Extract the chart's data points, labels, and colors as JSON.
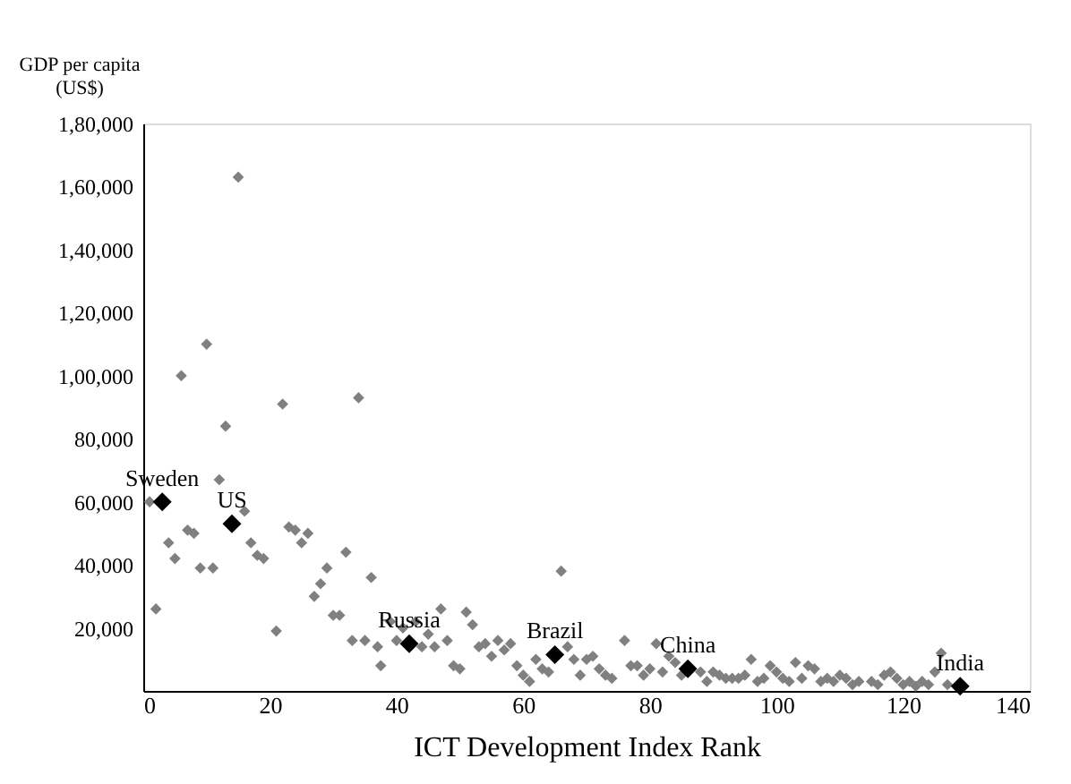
{
  "chart_data": {
    "type": "scatter",
    "xlabel": "ICT Development Index Rank",
    "ylabel": "GDP per capita (US$)",
    "xlim": [
      0,
      140
    ],
    "xticks": [
      0,
      20,
      40,
      60,
      80,
      100,
      120,
      140
    ],
    "ylim": [
      0,
      180000
    ],
    "yticks": [
      {
        "value": 20000,
        "label": "20,000"
      },
      {
        "value": 40000,
        "label": "40,000"
      },
      {
        "value": 60000,
        "label": "60,000"
      },
      {
        "value": 80000,
        "label": "80,000"
      },
      {
        "value": 100000,
        "label": "1,00,000"
      },
      {
        "value": 120000,
        "label": "1,20,000"
      },
      {
        "value": 140000,
        "label": "1,40,000"
      },
      {
        "value": 160000,
        "label": "1,60,000"
      },
      {
        "value": 180000,
        "label": "1,80,000"
      }
    ],
    "grid": false,
    "marker": "diamond",
    "series": [
      {
        "color": "#808080",
        "x": [
          1,
          2,
          4,
          5,
          6,
          7,
          8,
          9,
          10,
          11,
          12,
          13,
          15,
          16,
          17,
          18,
          19,
          21,
          22,
          23,
          24,
          25,
          26,
          27,
          28,
          29,
          30,
          31,
          32,
          33,
          34,
          35,
          36,
          37,
          37.5,
          39,
          40,
          41,
          43,
          44,
          45,
          46,
          47,
          48,
          49,
          50,
          51,
          52,
          53,
          54,
          55,
          56,
          57,
          58,
          59,
          60,
          61,
          62,
          63,
          64,
          66,
          67,
          68,
          69,
          70,
          71,
          72,
          73,
          74,
          76,
          77,
          78,
          79,
          80,
          81,
          82,
          83,
          84,
          85,
          88,
          89,
          90,
          91,
          92,
          93,
          94,
          95,
          96,
          97,
          98,
          99,
          100,
          101,
          102,
          103,
          104,
          105,
          106,
          107,
          108,
          109,
          110,
          111,
          112,
          113,
          115,
          116,
          117,
          118,
          119,
          120,
          121,
          122,
          123,
          124,
          125,
          126,
          127
        ],
        "values": [
          60000,
          26000,
          47000,
          42000,
          100000,
          51000,
          50000,
          39000,
          110000,
          39000,
          67000,
          84000,
          163000,
          57000,
          47000,
          43000,
          42000,
          19000,
          91000,
          52000,
          51000,
          47000,
          50000,
          30000,
          34000,
          39000,
          24000,
          24000,
          44000,
          16000,
          93000,
          16000,
          36000,
          14000,
          8000,
          22000,
          16000,
          20000,
          22000,
          14000,
          18000,
          14000,
          26000,
          16000,
          8000,
          7000,
          25000,
          21000,
          14000,
          15000,
          11000,
          16000,
          13000,
          15000,
          8000,
          5000,
          3000,
          10000,
          7000,
          6000,
          38000,
          14000,
          10000,
          5000,
          10000,
          11000,
          7000,
          5000,
          4000,
          16000,
          8000,
          8000,
          5000,
          7000,
          15000,
          6000,
          11000,
          9000,
          5000,
          6000,
          3000,
          6000,
          5000,
          4000,
          4000,
          4000,
          5000,
          10000,
          3000,
          4000,
          8000,
          6000,
          4000,
          3000,
          9000,
          4000,
          8000,
          7000,
          3000,
          4000,
          3000,
          5000,
          4000,
          2000,
          3000,
          3000,
          2000,
          5000,
          6000,
          4000,
          2000,
          3000,
          1500,
          3000,
          2000,
          6000,
          12000,
          2000
        ]
      },
      {
        "color": "#000000",
        "x": [
          3,
          14,
          42,
          65,
          86,
          129
        ],
        "values": [
          60000,
          53000,
          15000,
          11500,
          7000,
          1500
        ]
      }
    ],
    "annotations": [
      {
        "text": "Sweden",
        "x": 3,
        "y": 60000
      },
      {
        "text": "US",
        "x": 14,
        "y": 53000
      },
      {
        "text": "Russia",
        "x": 42,
        "y": 15000
      },
      {
        "text": "Brazil",
        "x": 65,
        "y": 11500
      },
      {
        "text": "China",
        "x": 86,
        "y": 7000
      },
      {
        "text": "India",
        "x": 129,
        "y": 1500
      }
    ]
  }
}
